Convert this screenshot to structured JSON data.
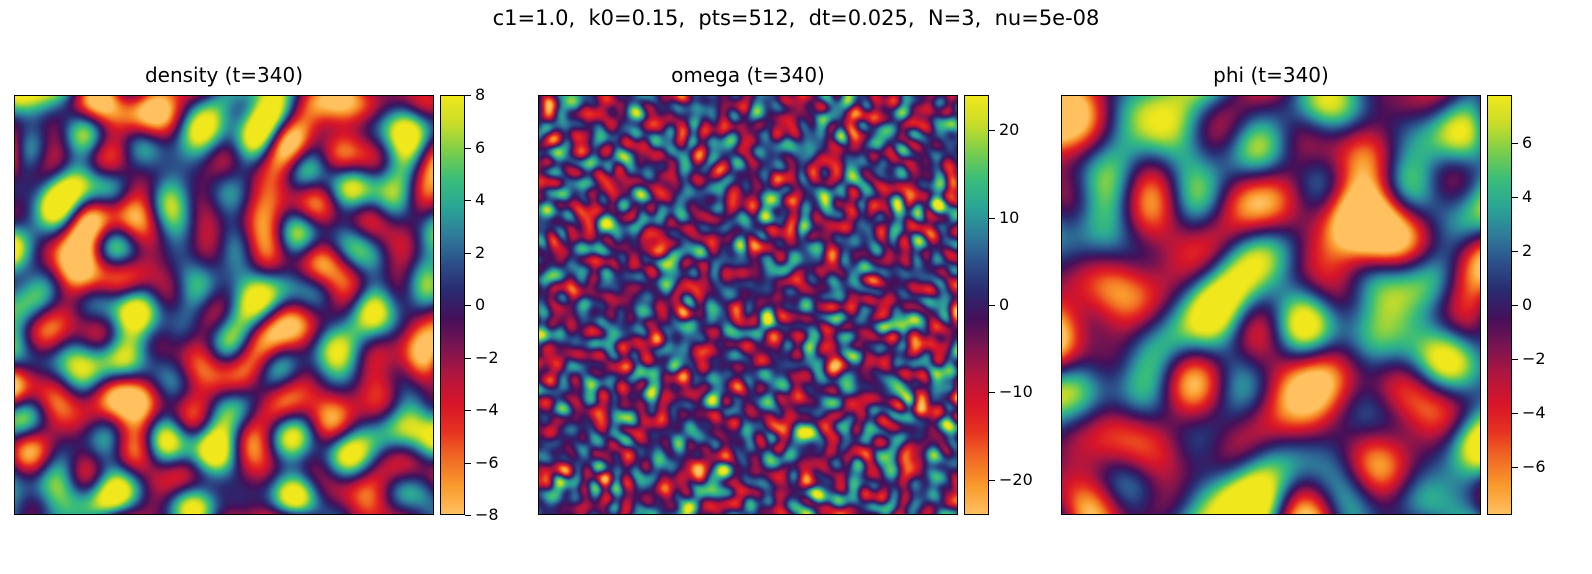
{
  "figure": {
    "suptitle": "c1=1.0,  k0=0.15,  pts=512,  dt=0.025,  N=3,  nu=5e-08"
  },
  "colormap": {
    "stops": [
      "#ffc060",
      "#f99a2c",
      "#f06a24",
      "#e63020",
      "#d6142a",
      "#b01640",
      "#7a1450",
      "#45105a",
      "#2a2a70",
      "#2c4f8a",
      "#2e7b9a",
      "#2aa596",
      "#39bd7a",
      "#7ace4c",
      "#c8dc28",
      "#f0e81c"
    ]
  },
  "chart_data": [
    {
      "type": "heatmap",
      "field": "density",
      "title": "density (t=340)",
      "grid_points": 512,
      "range": [
        -8,
        8
      ],
      "colorbar_ticks": [
        8,
        6,
        4,
        2,
        0,
        -2,
        -4,
        -6,
        -8
      ],
      "colorbar_tick_labels": [
        "8",
        "6",
        "4",
        "2",
        "0",
        "−2",
        "−4",
        "−6",
        "−8"
      ]
    },
    {
      "type": "heatmap",
      "field": "omega",
      "title": "omega (t=340)",
      "grid_points": 512,
      "range": [
        -24,
        24
      ],
      "colorbar_ticks": [
        20,
        10,
        0,
        -10,
        -20
      ],
      "colorbar_tick_labels": [
        "20",
        "10",
        "0",
        "−10",
        "−20"
      ]
    },
    {
      "type": "heatmap",
      "field": "phi",
      "title": "phi (t=340)",
      "grid_points": 512,
      "range": [
        -7.8,
        7.8
      ],
      "colorbar_ticks": [
        6,
        4,
        2,
        0,
        -2,
        -4,
        -6
      ],
      "colorbar_tick_labels": [
        "6",
        "4",
        "2",
        "0",
        "−2",
        "−4",
        "−6"
      ]
    }
  ]
}
